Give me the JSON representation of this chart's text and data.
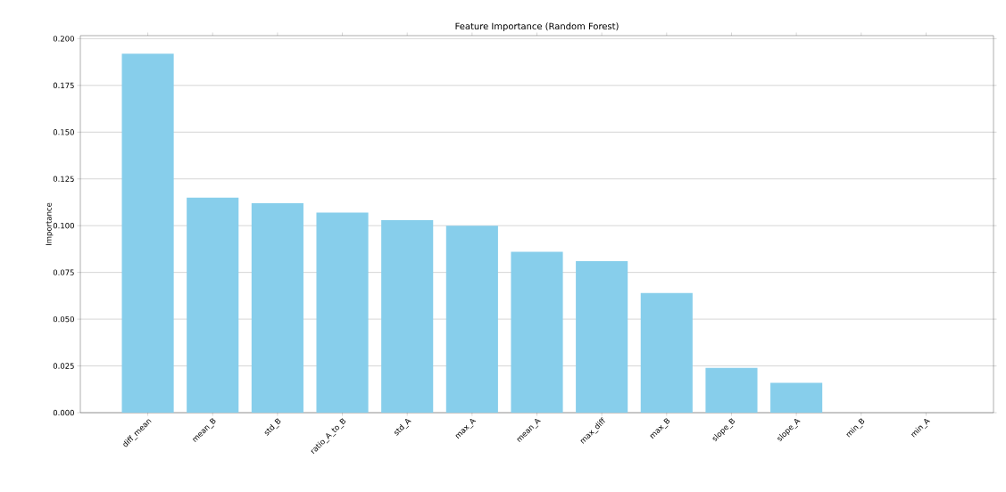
{
  "chart_data": {
    "type": "bar",
    "title": "Feature Importance (Random Forest)",
    "ylabel": "Importance",
    "categories": [
      "diff_mean",
      "mean_B",
      "std_B",
      "ratio_A_to_B",
      "std_A",
      "max_A",
      "mean_A",
      "max_diff",
      "max_B",
      "slope_B",
      "slope_A",
      "min_B",
      "min_A"
    ],
    "values": [
      0.192,
      0.115,
      0.112,
      0.107,
      0.103,
      0.1,
      0.086,
      0.081,
      0.064,
      0.024,
      0.016,
      0,
      0
    ],
    "color": "#87ceeb",
    "ylim": [
      0,
      0.2016
    ],
    "yticks": [
      {
        "value": 0,
        "label": "0.000"
      },
      {
        "value": 0.025,
        "label": "0.025"
      },
      {
        "value": 0.05,
        "label": "0.050"
      },
      {
        "value": 0.075,
        "label": "0.075"
      },
      {
        "value": 0.1,
        "label": "0.100"
      },
      {
        "value": 0.125,
        "label": "0.125"
      },
      {
        "value": 0.15,
        "label": "0.150"
      },
      {
        "value": 0.175,
        "label": "0.175"
      },
      {
        "value": 0.2,
        "label": "0.200"
      }
    ],
    "grid": "y"
  }
}
